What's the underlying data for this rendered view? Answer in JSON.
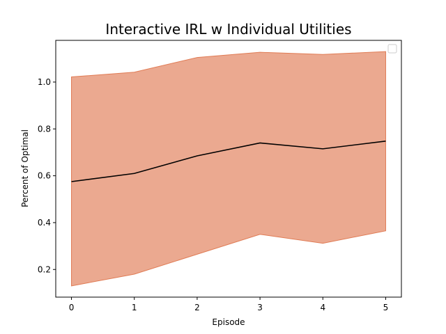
{
  "chart_data": {
    "type": "line",
    "title": "Interactive IRL w Individual Utilities",
    "xlabel": "Episode",
    "ylabel": "Percent of Optimal",
    "x": [
      0,
      1,
      2,
      3,
      4,
      5
    ],
    "series": [
      {
        "values": [
          0.575,
          0.61,
          0.685,
          0.74,
          0.715,
          0.748
        ],
        "lower": [
          0.13,
          0.18,
          0.265,
          0.35,
          0.312,
          0.365
        ],
        "upper": [
          1.022,
          1.042,
          1.105,
          1.127,
          1.118,
          1.13
        ],
        "line_color": "#000000",
        "band_color": "#e07b54"
      }
    ],
    "xlim": [
      -0.25,
      5.25
    ],
    "ylim": [
      0.082,
      1.178
    ],
    "xticks": [
      0,
      1,
      2,
      3,
      4,
      5
    ],
    "yticks": [
      0.2,
      0.4,
      0.6,
      0.8,
      1.0
    ],
    "ytick_labels": [
      "0.2",
      "0.4",
      "0.6",
      "0.8",
      "1.0"
    ],
    "grid": false,
    "legend": {
      "placement": "upper-right",
      "entries": []
    }
  }
}
